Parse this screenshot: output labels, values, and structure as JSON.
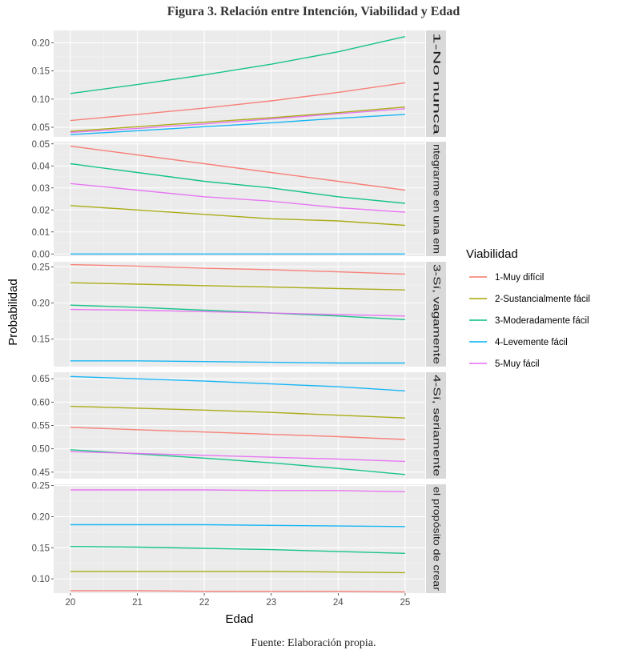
{
  "figure_title": "Figura 3. Relación entre Intención, Viabilidad y Edad",
  "source_note": "Fuente: Elaboración propia.",
  "chart_data": {
    "type": "line",
    "xlabel": "Edad",
    "ylabel": "Probabilidad",
    "x_ticks": [
      20,
      21,
      22,
      23,
      24,
      25
    ],
    "xlim": [
      19.75,
      25.3
    ],
    "grid": true,
    "legend": {
      "title": "Viabilidad",
      "placement": "right",
      "entries": [
        "1-Muy difícil",
        "2-Sustancialmente fácil",
        "3-Moderadamente fácil",
        "4-Levemente fácil",
        "5-Muy fácil"
      ]
    },
    "series_colors": [
      "#F8766D",
      "#A3A500",
      "#00BF7D",
      "#00B0F6",
      "#E76BF3"
    ],
    "panels": [
      {
        "strip": "1-No nunca",
        "ylim": [
          0.033,
          0.222
        ],
        "y_ticks": [
          0.05,
          0.1,
          0.15,
          0.2
        ],
        "y_tick_labels": [
          "0.05",
          "0.10",
          "0.15",
          "0.20"
        ],
        "series": [
          {
            "name": "1-Muy difícil",
            "x": [
              20,
              21,
              22,
              23,
              24,
              25
            ],
            "values": [
              0.062,
              0.073,
              0.084,
              0.097,
              0.112,
              0.129
            ]
          },
          {
            "name": "2-Sustancialmente fácil",
            "x": [
              20,
              21,
              22,
              23,
              24,
              25
            ],
            "values": [
              0.043,
              0.051,
              0.059,
              0.067,
              0.076,
              0.086
            ]
          },
          {
            "name": "3-Moderadamente fácil",
            "x": [
              20,
              21,
              22,
              23,
              24,
              25
            ],
            "values": [
              0.11,
              0.126,
              0.143,
              0.162,
              0.184,
              0.211
            ]
          },
          {
            "name": "4-Levemente fácil",
            "x": [
              20,
              21,
              22,
              23,
              24,
              25
            ],
            "values": [
              0.037,
              0.044,
              0.051,
              0.058,
              0.066,
              0.073
            ]
          },
          {
            "name": "5-Muy fácil",
            "x": [
              20,
              21,
              22,
              23,
              24,
              25
            ],
            "values": [
              0.041,
              0.048,
              0.056,
              0.065,
              0.074,
              0.083
            ]
          }
        ]
      },
      {
        "strip": "ntegrarme en una em",
        "ylim": [
          -0.001,
          0.051
        ],
        "y_ticks": [
          0.0,
          0.01,
          0.02,
          0.03,
          0.04,
          0.05
        ],
        "y_tick_labels": [
          "0.00",
          "0.01",
          "0.02",
          "0.03",
          "0.04",
          "0.05"
        ],
        "series": [
          {
            "name": "1-Muy difícil",
            "x": [
              20,
              21,
              22,
              23,
              24,
              25
            ],
            "values": [
              0.049,
              0.045,
              0.041,
              0.037,
              0.033,
              0.029
            ]
          },
          {
            "name": "2-Sustancialmente fácil",
            "x": [
              20,
              21,
              22,
              23,
              24,
              25
            ],
            "values": [
              0.022,
              0.02,
              0.018,
              0.016,
              0.015,
              0.013
            ]
          },
          {
            "name": "3-Moderadamente fácil",
            "x": [
              20,
              21,
              22,
              23,
              24,
              25
            ],
            "values": [
              0.041,
              0.037,
              0.033,
              0.03,
              0.026,
              0.023
            ]
          },
          {
            "name": "4-Levemente fácil",
            "x": [
              20,
              21,
              22,
              23,
              24,
              25
            ],
            "values": [
              0.0,
              0.0,
              0.0,
              0.0,
              0.0,
              0.0
            ]
          },
          {
            "name": "5-Muy fácil",
            "x": [
              20,
              21,
              22,
              23,
              24,
              25
            ],
            "values": [
              0.032,
              0.029,
              0.026,
              0.024,
              0.021,
              0.019
            ]
          }
        ]
      },
      {
        "strip": "3-Sí, vagamente",
        "ylim": [
          0.112,
          0.257
        ],
        "y_ticks": [
          0.15,
          0.2,
          0.25
        ],
        "y_tick_labels": [
          "0.15",
          "0.20",
          "0.25"
        ],
        "series": [
          {
            "name": "1-Muy difícil",
            "x": [
              20,
              21,
              22,
              23,
              24,
              25
            ],
            "values": [
              0.253,
              0.251,
              0.248,
              0.246,
              0.243,
              0.24
            ]
          },
          {
            "name": "2-Sustancialmente fácil",
            "x": [
              20,
              21,
              22,
              23,
              24,
              25
            ],
            "values": [
              0.228,
              0.226,
              0.224,
              0.222,
              0.22,
              0.218
            ]
          },
          {
            "name": "3-Moderadamente fácil",
            "x": [
              20,
              21,
              22,
              23,
              24,
              25
            ],
            "values": [
              0.197,
              0.194,
              0.19,
              0.186,
              0.182,
              0.177
            ]
          },
          {
            "name": "4-Levemente fácil",
            "x": [
              20,
              21,
              22,
              23,
              24,
              25
            ],
            "values": [
              0.12,
              0.12,
              0.119,
              0.118,
              0.117,
              0.117
            ]
          },
          {
            "name": "5-Muy fácil",
            "x": [
              20,
              21,
              22,
              23,
              24,
              25
            ],
            "values": [
              0.191,
              0.19,
              0.188,
              0.186,
              0.184,
              0.182
            ]
          }
        ]
      },
      {
        "strip": "4-Sí, seriamente",
        "ylim": [
          0.436,
          0.664
        ],
        "y_ticks": [
          0.45,
          0.5,
          0.55,
          0.6,
          0.65
        ],
        "y_tick_labels": [
          "0.45",
          "0.50",
          "0.55",
          "0.60",
          "0.65"
        ],
        "series": [
          {
            "name": "1-Muy difícil",
            "x": [
              20,
              21,
              22,
              23,
              24,
              25
            ],
            "values": [
              0.546,
              0.541,
              0.536,
              0.531,
              0.526,
              0.52
            ]
          },
          {
            "name": "2-Sustancialmente fácil",
            "x": [
              20,
              21,
              22,
              23,
              24,
              25
            ],
            "values": [
              0.591,
              0.587,
              0.583,
              0.578,
              0.572,
              0.566
            ]
          },
          {
            "name": "3-Moderadamente fácil",
            "x": [
              20,
              21,
              22,
              23,
              24,
              25
            ],
            "values": [
              0.498,
              0.489,
              0.48,
              0.47,
              0.458,
              0.445
            ]
          },
          {
            "name": "4-Levemente fácil",
            "x": [
              20,
              21,
              22,
              23,
              24,
              25
            ],
            "values": [
              0.655,
              0.65,
              0.645,
              0.639,
              0.633,
              0.624
            ]
          },
          {
            "name": "5-Muy fácil",
            "x": [
              20,
              21,
              22,
              23,
              24,
              25
            ],
            "values": [
              0.494,
              0.49,
              0.486,
              0.482,
              0.478,
              0.473
            ]
          }
        ]
      },
      {
        "strip": "el propósito de crear",
        "ylim": [
          0.077,
          0.252
        ],
        "y_ticks": [
          0.1,
          0.15,
          0.2,
          0.25
        ],
        "y_tick_labels": [
          "0.10",
          "0.15",
          "0.20",
          "0.25"
        ],
        "series": [
          {
            "name": "1-Muy difícil",
            "x": [
              20,
              21,
              22,
              23,
              24,
              25
            ],
            "values": [
              0.081,
              0.081,
              0.08,
              0.08,
              0.08,
              0.079
            ]
          },
          {
            "name": "2-Sustancialmente fácil",
            "x": [
              20,
              21,
              22,
              23,
              24,
              25
            ],
            "values": [
              0.112,
              0.112,
              0.112,
              0.112,
              0.111,
              0.11
            ]
          },
          {
            "name": "3-Moderadamente fácil",
            "x": [
              20,
              21,
              22,
              23,
              24,
              25
            ],
            "values": [
              0.152,
              0.151,
              0.149,
              0.147,
              0.144,
              0.141
            ]
          },
          {
            "name": "4-Levemente fácil",
            "x": [
              20,
              21,
              22,
              23,
              24,
              25
            ],
            "values": [
              0.187,
              0.187,
              0.187,
              0.186,
              0.185,
              0.184
            ]
          },
          {
            "name": "5-Muy fácil",
            "x": [
              20,
              21,
              22,
              23,
              24,
              25
            ],
            "values": [
              0.243,
              0.243,
              0.243,
              0.242,
              0.242,
              0.24
            ]
          }
        ]
      }
    ]
  }
}
